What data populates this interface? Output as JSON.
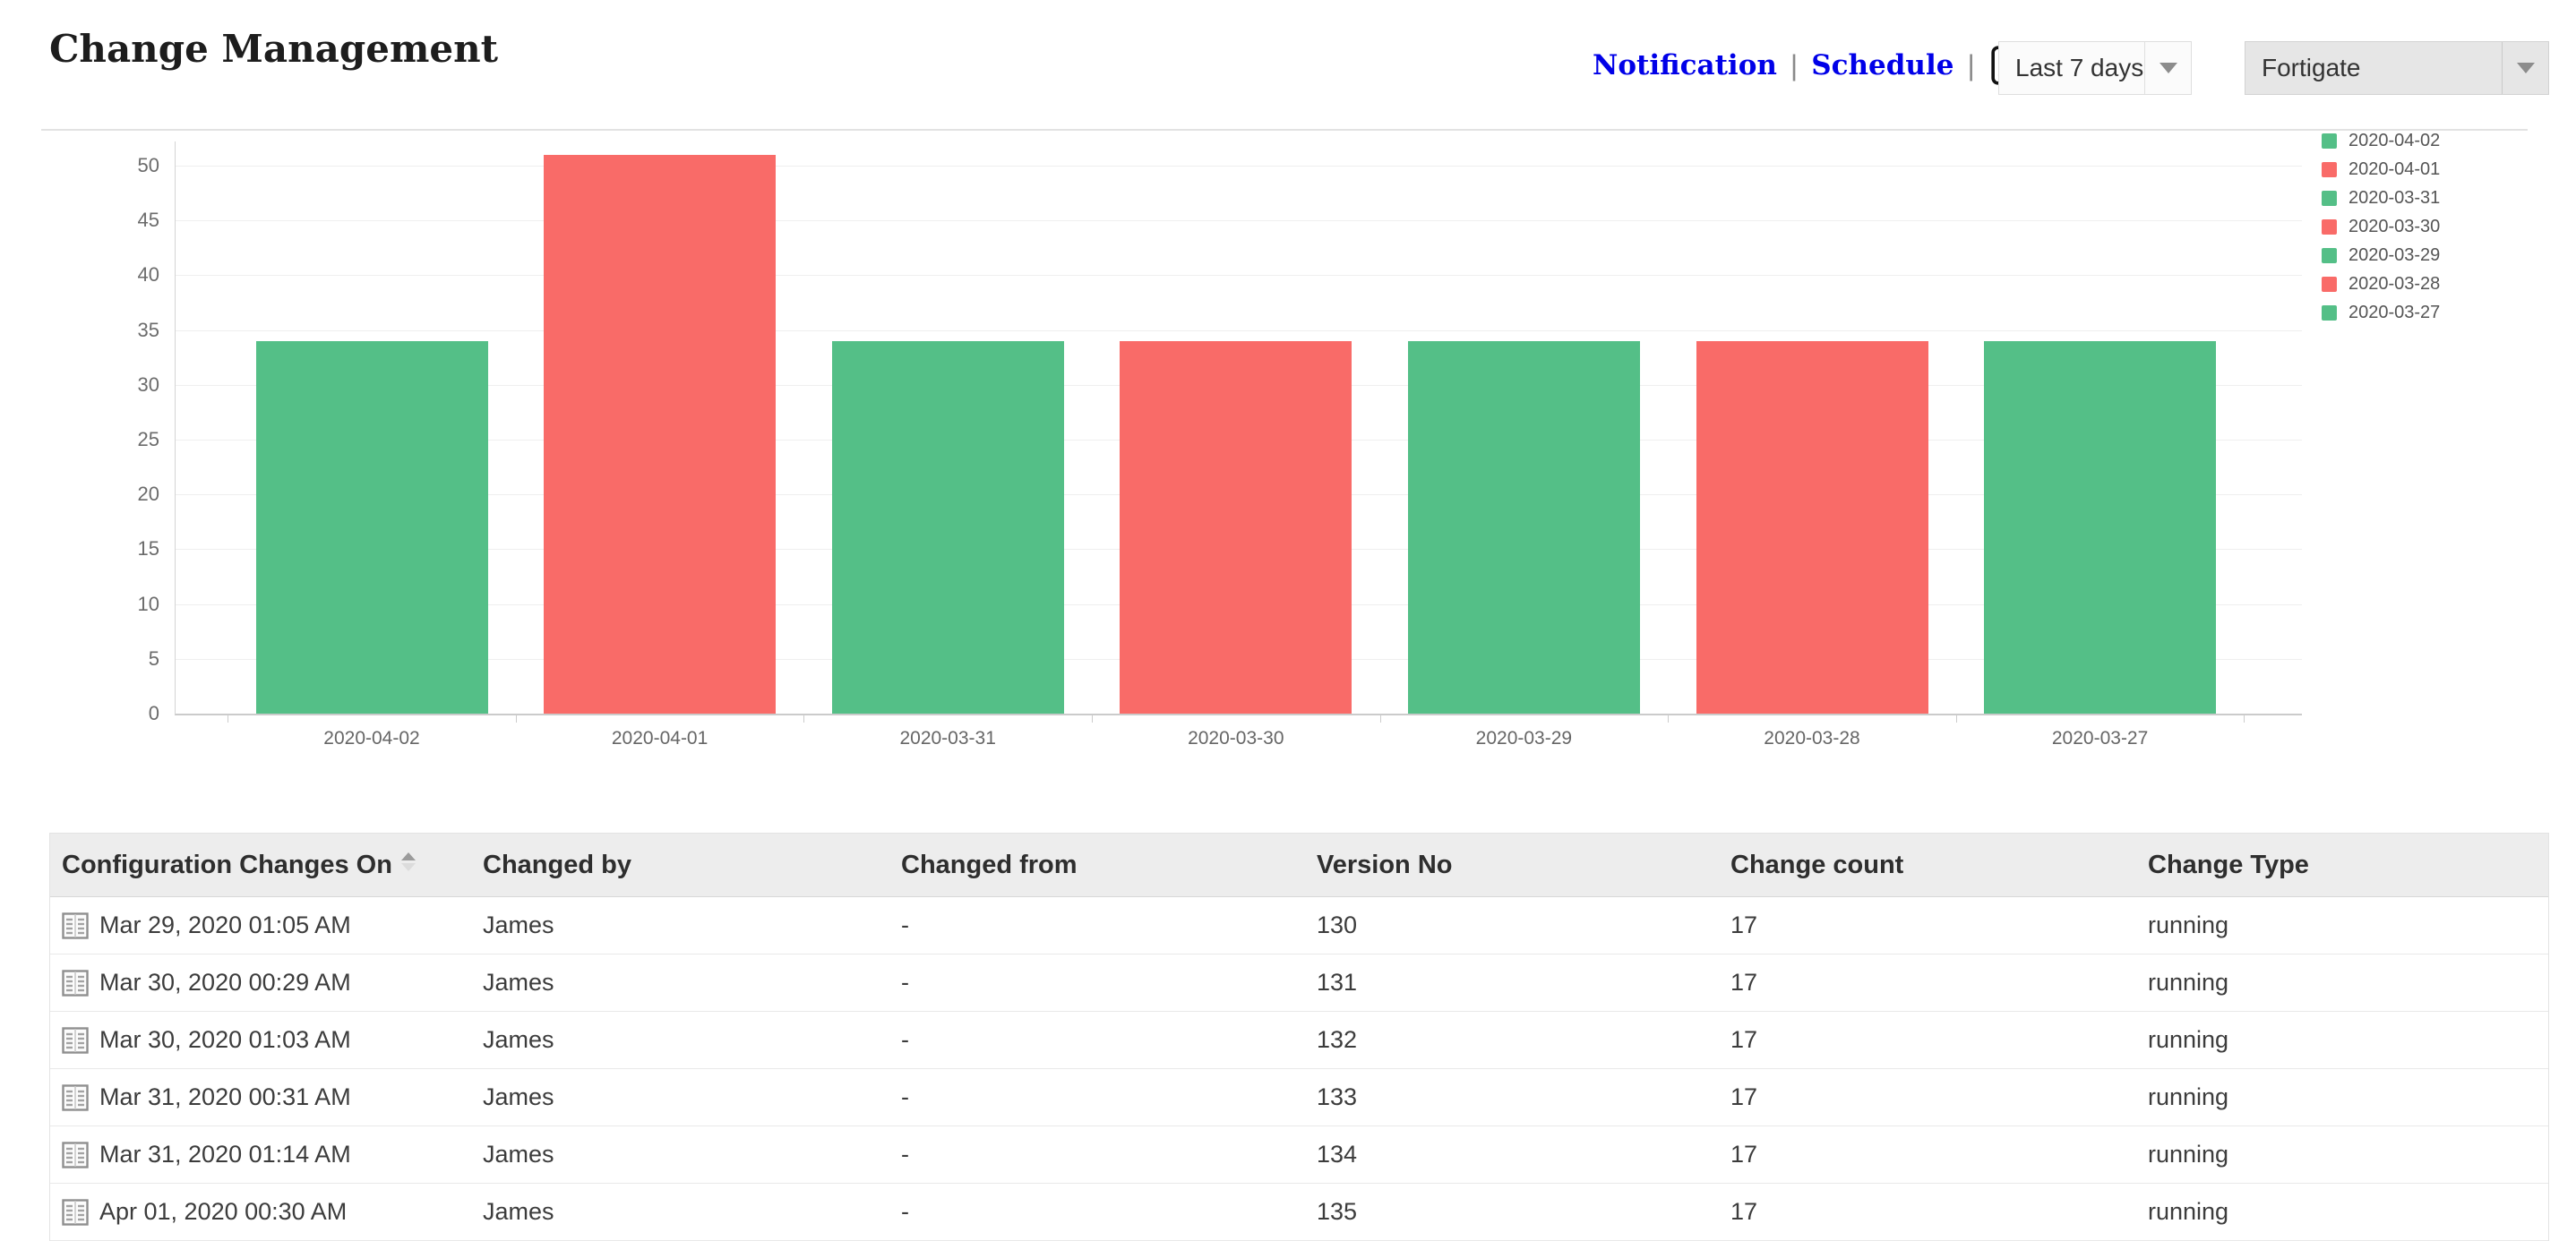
{
  "header": {
    "title": "Change Management",
    "nav": {
      "notification_label": "Notification",
      "schedule_label": "Schedule",
      "separator": "|"
    },
    "period_dropdown": {
      "value": "Last 7 days"
    },
    "device_dropdown": {
      "value": "Fortigate"
    },
    "link_color": "#0000e8"
  },
  "chart_data": {
    "type": "bar",
    "title": "",
    "xlabel": "",
    "ylabel": "",
    "categories": [
      "2020-04-02",
      "2020-04-01",
      "2020-03-31",
      "2020-03-30",
      "2020-03-29",
      "2020-03-28",
      "2020-03-27"
    ],
    "values": [
      34,
      51,
      34,
      34,
      34,
      34,
      34
    ],
    "bar_colors": [
      "#54bf87",
      "#f96b68",
      "#54bf87",
      "#f96b68",
      "#54bf87",
      "#f96b68",
      "#54bf87"
    ],
    "yticks": [
      0,
      5,
      10,
      15,
      20,
      25,
      30,
      35,
      40,
      45,
      50
    ],
    "ylim": [
      0,
      52
    ],
    "grid": true,
    "legend_position": "right",
    "legend": [
      {
        "label": "2020-04-02",
        "color": "#54bf87"
      },
      {
        "label": "2020-04-01",
        "color": "#f96b68"
      },
      {
        "label": "2020-03-31",
        "color": "#54bf87"
      },
      {
        "label": "2020-03-30",
        "color": "#f96b68"
      },
      {
        "label": "2020-03-29",
        "color": "#54bf87"
      },
      {
        "label": "2020-03-28",
        "color": "#f96b68"
      },
      {
        "label": "2020-03-27",
        "color": "#54bf87"
      }
    ]
  },
  "table": {
    "columns": [
      "Configuration Changes On",
      "Changed by",
      "Changed from",
      "Version No",
      "Change count",
      "Change Type"
    ],
    "sort": {
      "column": "Configuration Changes On",
      "direction": "asc"
    },
    "rows": [
      {
        "changes_on": "Mar 29, 2020 01:05 AM",
        "changed_by": "James",
        "changed_from": "-",
        "version_no": "130",
        "change_count": "17",
        "change_type": "running"
      },
      {
        "changes_on": "Mar 30, 2020 00:29 AM",
        "changed_by": "James",
        "changed_from": "-",
        "version_no": "131",
        "change_count": "17",
        "change_type": "running"
      },
      {
        "changes_on": "Mar 30, 2020 01:03 AM",
        "changed_by": "James",
        "changed_from": "-",
        "version_no": "132",
        "change_count": "17",
        "change_type": "running"
      },
      {
        "changes_on": "Mar 31, 2020 00:31 AM",
        "changed_by": "James",
        "changed_from": "-",
        "version_no": "133",
        "change_count": "17",
        "change_type": "running"
      },
      {
        "changes_on": "Mar 31, 2020 01:14 AM",
        "changed_by": "James",
        "changed_from": "-",
        "version_no": "134",
        "change_count": "17",
        "change_type": "running"
      },
      {
        "changes_on": "Apr 01, 2020 00:30 AM",
        "changed_by": "James",
        "changed_from": "-",
        "version_no": "135",
        "change_count": "17",
        "change_type": "running"
      }
    ]
  }
}
